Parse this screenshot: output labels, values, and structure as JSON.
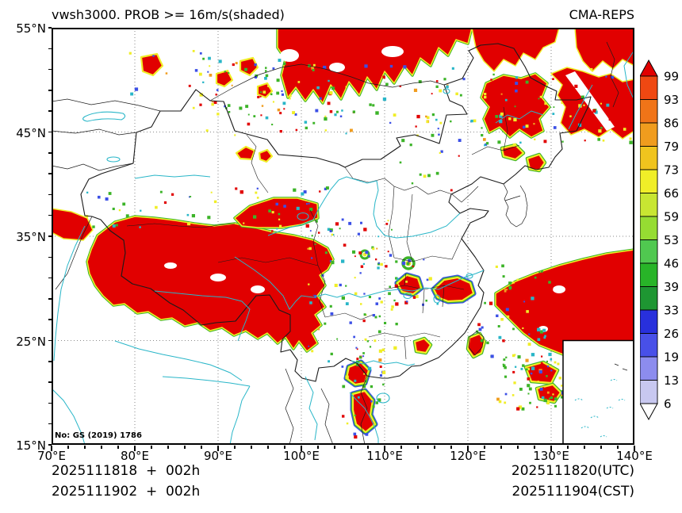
{
  "header": {
    "title": "vwsh3000. PROB >= 16m/s(shaded)",
    "model": "CMA-REPS"
  },
  "axes": {
    "x_labels": [
      "70°E",
      "80°E",
      "90°E",
      "100°E",
      "110°E",
      "120°E",
      "130°E",
      "140°E"
    ],
    "y_labels": [
      "55°N",
      "45°N",
      "35°N",
      "25°N",
      "15°N"
    ]
  },
  "colorbar": {
    "labels": [
      "99",
      "93",
      "86",
      "79",
      "73",
      "66",
      "59",
      "53",
      "46",
      "39",
      "33",
      "26",
      "19",
      "13",
      "6"
    ],
    "segment_colors": [
      "#ef4812",
      "#f07418",
      "#f09c1e",
      "#f0c41e",
      "#f0ee28",
      "#c8e632",
      "#96dc32",
      "#50c850",
      "#28b428",
      "#1e9632",
      "#2830dc",
      "#4850e8",
      "#8c8cee",
      "#c8c8f0"
    ],
    "arrow_top_color": "#e10000",
    "arrow_bottom_color": "#ffffff"
  },
  "footer": {
    "run_line1": "2025111818  +  002h",
    "run_line2": "2025111902  +  002h",
    "valid_line1": "2025111820(UTC)",
    "valid_line2": "2025111904(CST)"
  },
  "watermark": "No: GS (2019) 1786",
  "colors": {
    "shade_red": "#e10000",
    "fringe_yellow": "#f0ee28",
    "fringe_green": "#3cb428",
    "fringe_blue": "#3c50e6",
    "water_cyan": "#29b6c8",
    "boundary_black": "#1a1a1a"
  }
}
